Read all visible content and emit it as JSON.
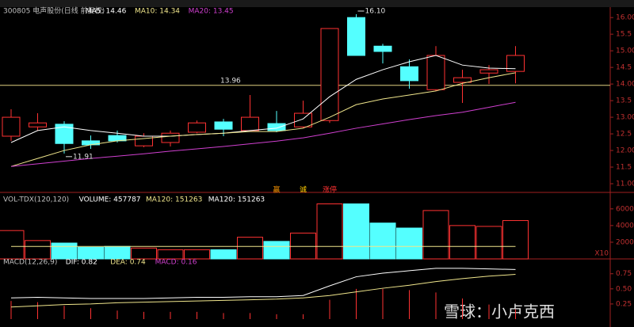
{
  "header": {
    "stock": "300805 电声股份(日线 前复权)",
    "watermark": "雪球：小卢克西"
  },
  "chart_data": [
    {
      "type": "candlestick",
      "legend": [
        "MA5: 14.46",
        "MA10: 14.34",
        "MA20: 13.45"
      ],
      "up_color": "#ff3232",
      "down_color": "#54ffff",
      "open": [
        12.43,
        12.71,
        12.79,
        12.29,
        12.45,
        12.14,
        12.24,
        12.55,
        12.86,
        12.6,
        12.81,
        12.71,
        12.9,
        16.0,
        15.14,
        14.52,
        13.83,
        14.05,
        14.33,
        14.38
      ],
      "high": [
        13.24,
        13.12,
        12.88,
        12.45,
        12.6,
        12.52,
        12.6,
        12.9,
        12.95,
        13.67,
        13.19,
        13.5,
        15.67,
        16.1,
        15.21,
        14.74,
        15.14,
        14.43,
        14.57,
        15.14
      ],
      "low": [
        12.29,
        12.6,
        11.91,
        12.05,
        12.24,
        12.1,
        12.12,
        12.52,
        12.43,
        12.6,
        12.55,
        12.67,
        12.83,
        14.86,
        14.62,
        13.86,
        13.79,
        13.43,
        14.0,
        14.02
      ],
      "close": [
        13.0,
        12.83,
        12.21,
        12.17,
        12.29,
        12.43,
        12.52,
        12.83,
        12.64,
        13.0,
        12.6,
        13.12,
        15.67,
        14.86,
        14.98,
        14.1,
        14.86,
        14.19,
        14.43,
        14.86
      ],
      "series": [
        {
          "color": "#ffffff",
          "values": [
            12.24,
            12.6,
            12.71,
            12.6,
            12.52,
            12.43,
            12.43,
            12.48,
            12.52,
            12.6,
            12.67,
            12.95,
            13.62,
            14.14,
            14.43,
            14.67,
            14.86,
            14.57,
            14.48,
            14.46
          ]
        },
        {
          "color": "#f0e68c",
          "values": [
            11.52,
            11.76,
            12.0,
            12.17,
            12.29,
            12.36,
            12.43,
            12.48,
            12.52,
            12.57,
            12.57,
            12.67,
            13.0,
            13.38,
            13.55,
            13.67,
            13.79,
            14.02,
            14.19,
            14.34
          ]
        },
        {
          "color": "#d040d0",
          "values": [
            11.52,
            11.6,
            11.68,
            11.76,
            11.83,
            11.9,
            11.98,
            12.05,
            12.12,
            12.2,
            12.28,
            12.38,
            12.52,
            12.67,
            12.8,
            12.93,
            13.05,
            13.15,
            13.3,
            13.45
          ]
        }
      ],
      "hline": {
        "value": 13.96,
        "label": "13.96",
        "color": "#e0d080"
      },
      "annotations": [
        {
          "value": 16.1,
          "label": "16.10"
        },
        {
          "value": 11.91,
          "label": "11.91"
        }
      ],
      "signals": [
        {
          "text": "赢",
          "color": "#ff9900"
        },
        {
          "text": "诚",
          "color": "#ffcc00"
        },
        {
          "text": "涨停",
          "color": "#ff3232"
        }
      ],
      "ylim": [
        10.81,
        16.29
      ],
      "yticks": [
        {
          "value": 11,
          "label": "11.00"
        },
        11.5,
        {
          "value": 12,
          "label": "12.00"
        },
        12.5,
        {
          "value": 13,
          "label": "13.00"
        },
        13.5,
        {
          "value": 14,
          "label": "14.00"
        },
        14.5,
        {
          "value": 15,
          "label": "15.00"
        },
        15.5,
        {
          "value": 16,
          "label": "16.00"
        }
      ]
    },
    {
      "type": "bar",
      "legend": [
        "VOL-TDX(120,120)",
        "VOLUME: 457787",
        "MA120: 151263",
        "MA120: 151263"
      ],
      "unit": "X10",
      "values": [
        34000,
        22000,
        19000,
        14000,
        15000,
        13000,
        11000,
        11000,
        11000,
        26000,
        21000,
        31000,
        66000,
        66000,
        43000,
        37000,
        58000,
        40000,
        39000,
        46000
      ],
      "series": [
        {
          "color": "#f0e68c",
          "values": [
            15000,
            15000,
            15000,
            15000,
            15000,
            15000,
            15000,
            15000,
            15000,
            15000,
            15000,
            15000,
            15000,
            15000,
            15000,
            15000,
            15000,
            15000,
            15000,
            15000
          ]
        }
      ],
      "ylim": [
        0,
        75000
      ],
      "yticks": [
        20000,
        40000,
        60000
      ]
    },
    {
      "type": "line",
      "legend": [
        "MACD(12,26,9)",
        "DIF: 0.82",
        "DEA: 0.74",
        "MACD: 0.16"
      ],
      "series": [
        {
          "color": "#ffffff",
          "values": [
            0.35,
            0.36,
            0.35,
            0.34,
            0.34,
            0.34,
            0.35,
            0.36,
            0.36,
            0.37,
            0.37,
            0.39,
            0.55,
            0.7,
            0.76,
            0.8,
            0.84,
            0.84,
            0.83,
            0.82
          ]
        },
        {
          "color": "#f0e68c",
          "values": [
            0.2,
            0.22,
            0.24,
            0.25,
            0.27,
            0.28,
            0.29,
            0.3,
            0.31,
            0.32,
            0.33,
            0.35,
            0.39,
            0.45,
            0.51,
            0.56,
            0.62,
            0.67,
            0.71,
            0.74
          ]
        }
      ],
      "macd": {
        "color": "#ff3232",
        "values": [
          0.3,
          0.28,
          0.22,
          0.18,
          0.14,
          0.12,
          0.12,
          0.12,
          0.1,
          0.1,
          0.08,
          0.08,
          0.32,
          0.5,
          0.5,
          0.48,
          0.44,
          0.34,
          0.24,
          0.16
        ]
      },
      "ylim": [
        0,
        0.93
      ],
      "yticks": [
        0.25,
        {
          "value": 0.5,
          "label": "0.50"
        },
        0.75
      ]
    }
  ]
}
